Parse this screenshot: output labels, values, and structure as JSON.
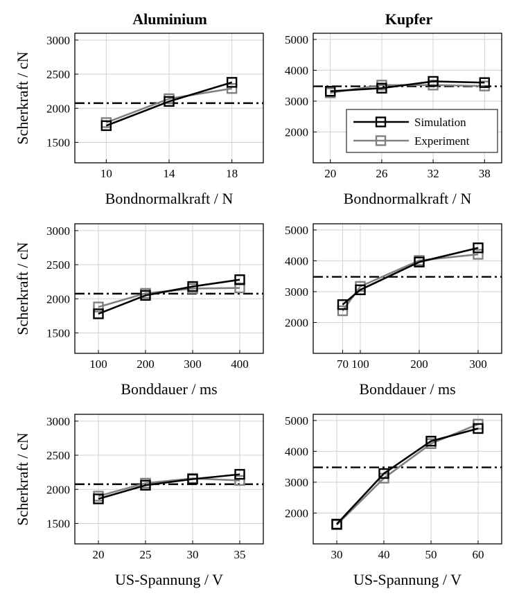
{
  "column_titles": [
    "Aluminium",
    "Kupfer"
  ],
  "legend": {
    "entries": [
      {
        "name": "Simulation",
        "color": "#000000"
      },
      {
        "name": "Experiment",
        "color": "#808080"
      }
    ],
    "location": "lower-right of top-right panel"
  },
  "colors": {
    "simulation": "#000000",
    "experiment": "#808080",
    "grid": "#d0d0d0"
  },
  "chart_data": [
    {
      "type": "line",
      "title": "Aluminium",
      "xlabel": "Bondnormalkraft / N",
      "ylabel": "Scherkraft / cN",
      "xlim": [
        8,
        20
      ],
      "ylim": [
        1200,
        3100
      ],
      "xticks": [
        10,
        14,
        18
      ],
      "yticks": [
        1500,
        2000,
        2500,
        3000
      ],
      "reference_line": 2075,
      "series": [
        {
          "name": "Simulation",
          "x": [
            10,
            14,
            18
          ],
          "y": [
            1745,
            2100,
            2380
          ]
        },
        {
          "name": "Experiment",
          "x": [
            10,
            14,
            18
          ],
          "y": [
            1790,
            2140,
            2290
          ]
        }
      ]
    },
    {
      "type": "line",
      "title": "Kupfer",
      "xlabel": "Bondnormalkraft / N",
      "ylabel": "",
      "xlim": [
        18,
        40
      ],
      "ylim": [
        1000,
        5200
      ],
      "xticks": [
        20,
        26,
        32,
        38
      ],
      "yticks": [
        2000,
        3000,
        4000,
        5000
      ],
      "reference_line": 3480,
      "series": [
        {
          "name": "Simulation",
          "x": [
            20,
            26,
            32,
            38
          ],
          "y": [
            3320,
            3420,
            3640,
            3600
          ]
        },
        {
          "name": "Experiment",
          "x": [
            20,
            26,
            32,
            38
          ],
          "y": [
            3270,
            3520,
            3520,
            3490
          ]
        }
      ]
    },
    {
      "type": "line",
      "title": "",
      "xlabel": "Bonddauer / ms",
      "ylabel": "Scherkraft / cN",
      "xlim": [
        50,
        450
      ],
      "ylim": [
        1200,
        3100
      ],
      "xticks": [
        100,
        200,
        300,
        400
      ],
      "yticks": [
        1500,
        2000,
        2500,
        3000
      ],
      "reference_line": 2075,
      "series": [
        {
          "name": "Simulation",
          "x": [
            100,
            200,
            300,
            400
          ],
          "y": [
            1780,
            2050,
            2180,
            2280
          ]
        },
        {
          "name": "Experiment",
          "x": [
            100,
            200,
            300,
            400
          ],
          "y": [
            1880,
            2080,
            2150,
            2160
          ]
        }
      ]
    },
    {
      "type": "line",
      "title": "",
      "xlabel": "Bonddauer / ms",
      "ylabel": "",
      "xlim": [
        20,
        340
      ],
      "ylim": [
        1000,
        5200
      ],
      "xticks": [
        70,
        100,
        200,
        300
      ],
      "yticks": [
        2000,
        3000,
        4000,
        5000
      ],
      "reference_line": 3480,
      "series": [
        {
          "name": "Simulation",
          "x": [
            70,
            100,
            200,
            300
          ],
          "y": [
            2580,
            3060,
            3960,
            4420
          ]
        },
        {
          "name": "Experiment",
          "x": [
            70,
            100,
            200,
            300
          ],
          "y": [
            2380,
            3170,
            4010,
            4210
          ]
        }
      ]
    },
    {
      "type": "line",
      "title": "",
      "xlabel": "US-Spannung / V",
      "ylabel": "Scherkraft / cN",
      "xlim": [
        17.5,
        37.5
      ],
      "ylim": [
        1200,
        3100
      ],
      "xticks": [
        20,
        25,
        30,
        35
      ],
      "yticks": [
        1500,
        2000,
        2500,
        3000
      ],
      "reference_line": 2075,
      "series": [
        {
          "name": "Simulation",
          "x": [
            20,
            25,
            30,
            35
          ],
          "y": [
            1860,
            2060,
            2150,
            2220
          ]
        },
        {
          "name": "Experiment",
          "x": [
            20,
            25,
            30,
            35
          ],
          "y": [
            1900,
            2090,
            2160,
            2130
          ]
        }
      ]
    },
    {
      "type": "line",
      "title": "",
      "xlabel": "US-Spannung / V",
      "ylabel": "",
      "xlim": [
        25,
        65
      ],
      "ylim": [
        1000,
        5200
      ],
      "xticks": [
        30,
        40,
        50,
        60
      ],
      "yticks": [
        2000,
        3000,
        4000,
        5000
      ],
      "reference_line": 3480,
      "series": [
        {
          "name": "Simulation",
          "x": [
            30,
            40,
            50,
            60
          ],
          "y": [
            1640,
            3280,
            4330,
            4740
          ]
        },
        {
          "name": "Experiment",
          "x": [
            30,
            40,
            50,
            60
          ],
          "y": [
            1620,
            3130,
            4250,
            4880
          ]
        }
      ]
    }
  ]
}
